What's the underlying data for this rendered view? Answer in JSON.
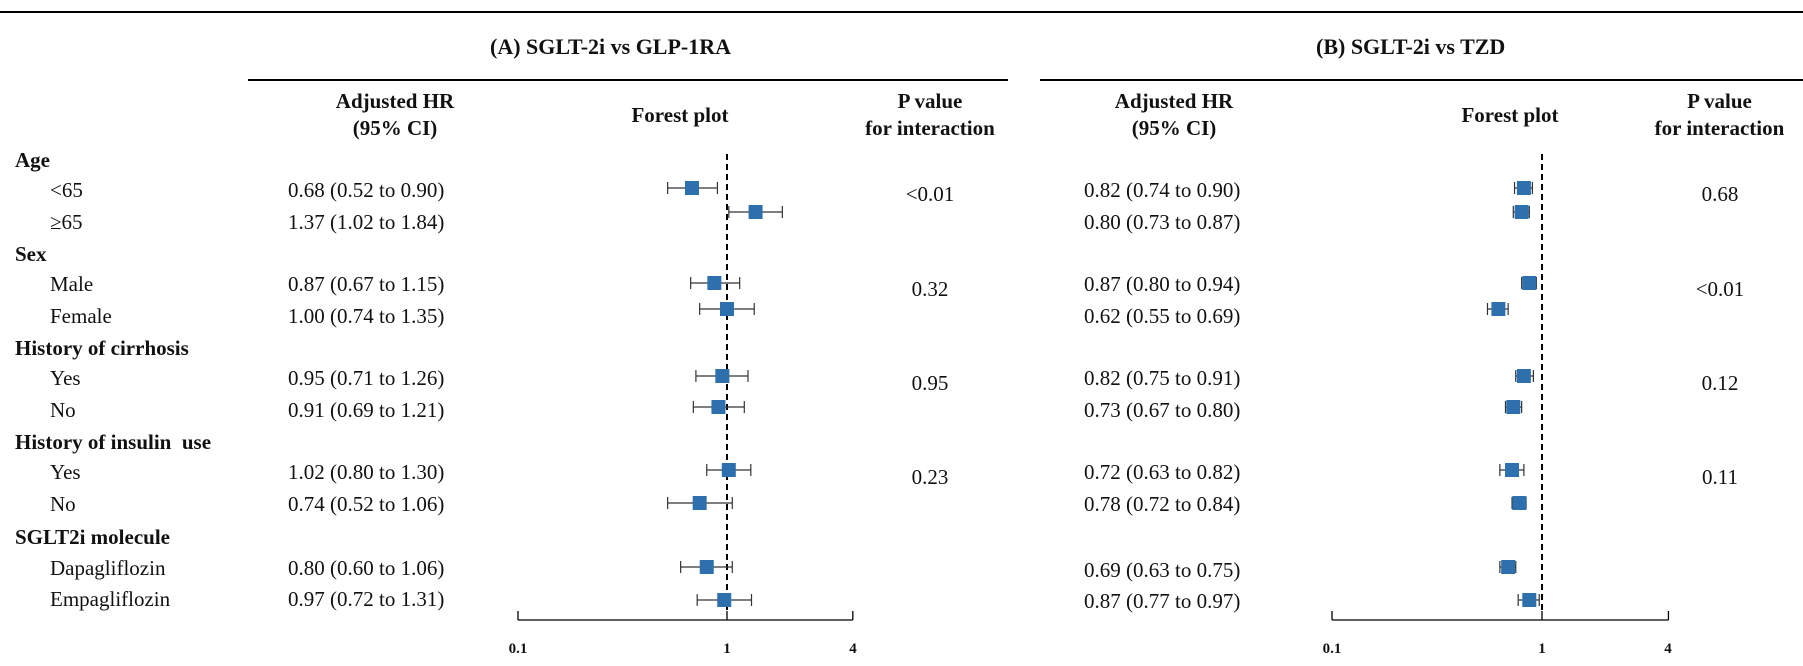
{
  "panels": [
    {
      "id": "A",
      "title": "(A) SGLT-2i vs GLP-1RA",
      "col_hr": [
        "Adjusted HR",
        "(95% CI)"
      ],
      "col_forest": "Forest plot",
      "col_p": [
        "P value",
        "for interaction"
      ]
    },
    {
      "id": "B",
      "title": "(B) SGLT-2i vs TZD",
      "col_hr": [
        "Adjusted HR",
        "(95% CI)"
      ],
      "col_forest": "Forest plot",
      "col_p": [
        "P value",
        "for interaction"
      ]
    }
  ],
  "groups": [
    {
      "label": "Age",
      "p_A": "<0.01",
      "p_B": "0.68",
      "rows": [
        {
          "label": "<65",
          "ci_A": "0.68 (0.52 to 0.90)",
          "ci_B": "0.82 (0.74 to 0.90)"
        },
        {
          "label": "≥65",
          "ci_A": "1.37 (1.02 to 1.84)",
          "ci_B": "0.80 (0.73 to 0.87)"
        }
      ]
    },
    {
      "label": "Sex",
      "p_A": "0.32",
      "p_B": "<0.01",
      "rows": [
        {
          "label": "Male",
          "ci_A": "0.87 (0.67 to 1.15)",
          "ci_B": "0.87 (0.80 to 0.94)"
        },
        {
          "label": "Female",
          "ci_A": "1.00 (0.74 to 1.35)",
          "ci_B": "0.62 (0.55 to 0.69)"
        }
      ]
    },
    {
      "label": "History of cirrhosis",
      "p_A": "0.95",
      "p_B": "0.12",
      "rows": [
        {
          "label": "Yes",
          "ci_A": "0.95 (0.71 to 1.26)",
          "ci_B": "0.82 (0.75 to 0.91)"
        },
        {
          "label": "No",
          "ci_A": "0.91 (0.69 to 1.21)",
          "ci_B": "0.73 (0.67 to 0.80)"
        }
      ]
    },
    {
      "label": "History of insulin  use",
      "p_A": "0.23",
      "p_B": "0.11",
      "rows": [
        {
          "label": "Yes",
          "ci_A": "1.02 (0.80 to 1.30)",
          "ci_B": "0.72 (0.63 to 0.82)"
        },
        {
          "label": "No",
          "ci_A": "0.74 (0.52 to 1.06)",
          "ci_B": "0.78 (0.72 to 0.84)"
        }
      ]
    },
    {
      "label": "SGLT2i molecule",
      "p_A": "",
      "p_B": "",
      "rows": [
        {
          "label": "Dapagliflozin",
          "ci_A": "0.80 (0.60 to 1.06)",
          "ci_B": "0.69 (0.63 to 0.75)"
        },
        {
          "label": "Empagliflozin",
          "ci_A": "0.97 (0.72 to 1.31)",
          "ci_B": "0.87 (0.77 to 0.97)"
        }
      ]
    }
  ],
  "chart_data": [
    {
      "type": "forest",
      "title": "(A) SGLT-2i vs GLP-1RA",
      "scale": "log",
      "xlim": [
        0.1,
        4
      ],
      "xticks": [
        "0.1",
        "1",
        "4"
      ],
      "reference_line": 1,
      "marker_color": "#2e6fad",
      "points": [
        {
          "label": "<65",
          "hr": 0.68,
          "lo": 0.52,
          "hi": 0.9
        },
        {
          "label": "≥65",
          "hr": 1.37,
          "lo": 1.02,
          "hi": 1.84
        },
        {
          "label": "Male",
          "hr": 0.87,
          "lo": 0.67,
          "hi": 1.15
        },
        {
          "label": "Female",
          "hr": 1.0,
          "lo": 0.74,
          "hi": 1.35
        },
        {
          "label": "Yes",
          "hr": 0.95,
          "lo": 0.71,
          "hi": 1.26
        },
        {
          "label": "No",
          "hr": 0.91,
          "lo": 0.69,
          "hi": 1.21
        },
        {
          "label": "Yes",
          "hr": 1.02,
          "lo": 0.8,
          "hi": 1.3
        },
        {
          "label": "No",
          "hr": 0.74,
          "lo": 0.52,
          "hi": 1.06
        },
        {
          "label": "Dapagliflozin",
          "hr": 0.8,
          "lo": 0.6,
          "hi": 1.06
        },
        {
          "label": "Empagliflozin",
          "hr": 0.97,
          "lo": 0.72,
          "hi": 1.31
        }
      ]
    },
    {
      "type": "forest",
      "title": "(B) SGLT-2i vs TZD",
      "scale": "log",
      "xlim": [
        0.1,
        4
      ],
      "xticks": [
        "0.1",
        "1",
        "4"
      ],
      "reference_line": 1,
      "marker_color": "#2e6fad",
      "points": [
        {
          "label": "<65",
          "hr": 0.82,
          "lo": 0.74,
          "hi": 0.9
        },
        {
          "label": "≥65",
          "hr": 0.8,
          "lo": 0.73,
          "hi": 0.87
        },
        {
          "label": "Male",
          "hr": 0.87,
          "lo": 0.8,
          "hi": 0.94
        },
        {
          "label": "Female",
          "hr": 0.62,
          "lo": 0.55,
          "hi": 0.69
        },
        {
          "label": "Yes",
          "hr": 0.82,
          "lo": 0.75,
          "hi": 0.91
        },
        {
          "label": "No",
          "hr": 0.73,
          "lo": 0.67,
          "hi": 0.8
        },
        {
          "label": "Yes",
          "hr": 0.72,
          "lo": 0.63,
          "hi": 0.82
        },
        {
          "label": "No",
          "hr": 0.78,
          "lo": 0.72,
          "hi": 0.84
        },
        {
          "label": "Dapagliflozin",
          "hr": 0.69,
          "lo": 0.63,
          "hi": 0.75
        },
        {
          "label": "Empagliflozin",
          "hr": 0.87,
          "lo": 0.77,
          "hi": 0.97
        }
      ]
    }
  ]
}
